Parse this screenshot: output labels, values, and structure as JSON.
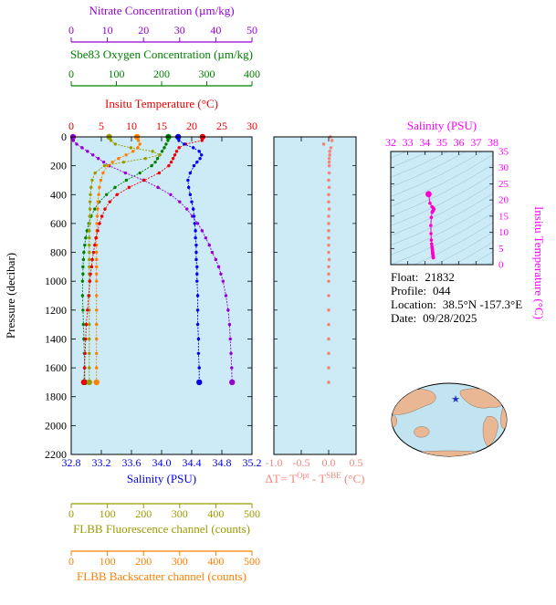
{
  "colors": {
    "panel_bg": "#cdeaf7",
    "frame": "#000000",
    "nitrate": "#9400D3",
    "oxygen": "#008000",
    "temperature": "#EE0000",
    "salinity": "#0000EE",
    "fluorescence": "#9B9B00",
    "backscatter": "#FF7F00",
    "delta": "#F4867D",
    "ts": "#FF00CC",
    "ts_axis": "#FF00FF",
    "contour": "#8FBFD4",
    "map_ocean": "#C2E4F0",
    "map_land": "#E9B793",
    "star": "#2233BB"
  },
  "info": {
    "rows": [
      {
        "label": "Float:",
        "value": "21832"
      },
      {
        "label": "Profile:",
        "value": "044"
      },
      {
        "label": "Location:",
        "value": "38.5°N  -157.3°E"
      },
      {
        "label": "Date:",
        "value": "09/28/2025"
      }
    ]
  },
  "chart_data": [
    {
      "id": "profiles",
      "type": "line",
      "ylabel": "Pressure (decibar)",
      "ylim": [
        0,
        2200
      ],
      "yticks": [
        0,
        200,
        400,
        600,
        800,
        1000,
        1200,
        1400,
        1600,
        1800,
        2000,
        2200
      ],
      "x_axes": [
        {
          "id": "nitrate",
          "label": "Nitrate Concentration (µm/kg)",
          "color": "#9400D3",
          "range": [
            0,
            50
          ],
          "ticks": [
            0,
            10,
            20,
            30,
            40,
            50
          ],
          "tick_labels": [
            "0",
            "10",
            "20",
            "30",
            "40",
            "50"
          ]
        },
        {
          "id": "oxygen",
          "label": "Sbe83 Oxygen Concentration (µm/kg)",
          "color": "#008000",
          "range": [
            0,
            400
          ],
          "ticks": [
            0,
            100,
            200,
            300,
            400
          ],
          "tick_labels": [
            "0",
            "100",
            "200",
            "300",
            "400"
          ]
        },
        {
          "id": "temperature",
          "label": "Insitu Temperature (°C)",
          "color": "#EE0000",
          "range": [
            0,
            30
          ],
          "ticks": [
            0,
            5,
            10,
            15,
            20,
            25,
            30
          ],
          "tick_labels": [
            "0",
            "5",
            "10",
            "15",
            "20",
            "25",
            "30"
          ]
        },
        {
          "id": "salinity",
          "label": "Salinity (PSU)",
          "color": "#0000EE",
          "range": [
            32.8,
            35.2
          ],
          "ticks": [
            32.8,
            33.2,
            33.6,
            34.0,
            34.4,
            34.8,
            35.2
          ],
          "tick_labels": [
            "32.8",
            "33.2",
            "33.6",
            "34.0",
            "34.4",
            "34.8",
            "35.2"
          ]
        },
        {
          "id": "fluorescence",
          "label": "FLBB Fluorescence channel (counts)",
          "color": "#9B9B00",
          "range": [
            0,
            500
          ],
          "ticks": [
            0,
            100,
            200,
            300,
            400,
            500
          ],
          "tick_labels": [
            "0",
            "100",
            "200",
            "300",
            "400",
            "500"
          ]
        },
        {
          "id": "backscatter",
          "label": "FLBB Backscatter channel (counts)",
          "color": "#FF7F00",
          "range": [
            0,
            500
          ],
          "ticks": [
            0,
            100,
            200,
            300,
            400,
            500
          ],
          "tick_labels": [
            "0",
            "100",
            "200",
            "300",
            "400",
            "500"
          ]
        }
      ],
      "pressure": [
        0,
        25,
        50,
        75,
        100,
        125,
        150,
        175,
        200,
        250,
        300,
        350,
        400,
        450,
        500,
        550,
        600,
        650,
        700,
        750,
        800,
        850,
        900,
        950,
        1000,
        1100,
        1200,
        1300,
        1400,
        1500,
        1600,
        1700
      ],
      "series": [
        {
          "name": "Nitrate",
          "axis": "nitrate",
          "color": "#9400D3",
          "values": [
            0.5,
            0.6,
            1.5,
            3.0,
            4.5,
            6.0,
            7.5,
            9.0,
            10.5,
            15.0,
            20.0,
            24.0,
            27.5,
            30.0,
            32.0,
            33.5,
            35.0,
            36.2,
            37.2,
            38.2,
            39.0,
            40.0,
            40.8,
            41.4,
            42.0,
            42.8,
            43.4,
            43.8,
            44.0,
            44.2,
            44.4,
            44.5
          ]
        },
        {
          "name": "Sbe83 Oxygen",
          "axis": "oxygen",
          "color": "#008000",
          "values": [
            215,
            214,
            210,
            206,
            201,
            196,
            191,
            186,
            178,
            152,
            122,
            97,
            78,
            62,
            52,
            44,
            39,
            35,
            32,
            30,
            28,
            27,
            26,
            26,
            25,
            25,
            26,
            27,
            28,
            29,
            30,
            30
          ]
        },
        {
          "name": "FLBB Backscatter",
          "axis": "backscatter",
          "color": "#FF7F00",
          "values": [
            182,
            186,
            190,
            184,
            171,
            152,
            131,
            114,
            101,
            88,
            82,
            78,
            76,
            74,
            73,
            72,
            71,
            71,
            70,
            70,
            70,
            70,
            70,
            70,
            70,
            70,
            70,
            70,
            70,
            70,
            70,
            70
          ]
        },
        {
          "name": "FLBB Fluorescence",
          "axis": "fluorescence",
          "color": "#9B9B00",
          "values": [
            105,
            110,
            122,
            165,
            225,
            245,
            205,
            145,
            92,
            66,
            58,
            55,
            53,
            52,
            52,
            51,
            51,
            50,
            50,
            50,
            50,
            50,
            50,
            50,
            50,
            50,
            50,
            50,
            50,
            50,
            50,
            50
          ]
        },
        {
          "name": "Insitu Temperature",
          "axis": "temperature",
          "color": "#EE0000",
          "values": [
            21.8,
            21.7,
            19.0,
            17.9,
            17.5,
            17.2,
            16.9,
            16.6,
            16.2,
            14.6,
            12.1,
            9.6,
            7.6,
            6.4,
            5.6,
            5.1,
            4.7,
            4.4,
            4.1,
            3.9,
            3.7,
            3.5,
            3.4,
            3.2,
            3.1,
            2.9,
            2.7,
            2.5,
            2.4,
            2.3,
            2.2,
            2.1
          ]
        },
        {
          "name": "Salinity",
          "axis": "salinity",
          "color": "#0000EE",
          "values": [
            34.22,
            34.23,
            34.3,
            34.42,
            34.5,
            34.53,
            34.51,
            34.47,
            34.43,
            34.38,
            34.35,
            34.36,
            34.38,
            34.4,
            34.42,
            34.43,
            34.44,
            34.45,
            34.45,
            34.46,
            34.46,
            34.46,
            34.47,
            34.47,
            34.47,
            34.48,
            34.48,
            34.48,
            34.49,
            34.49,
            34.5,
            34.5
          ]
        }
      ]
    },
    {
      "id": "delta-t",
      "type": "scatter",
      "title_parts": {
        "t1": "ΔT= T",
        "sup1": "Opt",
        "t2": " - T",
        "sup2": "SBE",
        "t3": " (°C)"
      },
      "color": "#F4867D",
      "xlim": [
        -1.0,
        0.5
      ],
      "xticks": [
        -1.0,
        -0.5,
        0.0,
        0.5
      ],
      "xtick_labels": [
        "-1.0",
        "-0.5",
        "0.0",
        "0.5"
      ],
      "ylim": [
        0,
        2200
      ],
      "yticks": [
        0,
        200,
        400,
        600,
        800,
        1000,
        1200,
        1400,
        1600,
        1800,
        2000,
        2200
      ],
      "pressure": [
        0,
        25,
        50,
        75,
        100,
        125,
        150,
        175,
        200,
        250,
        300,
        350,
        400,
        450,
        500,
        550,
        600,
        650,
        700,
        750,
        800,
        850,
        900,
        950,
        1000,
        1100,
        1200,
        1300,
        1400,
        1500,
        1600,
        1700
      ],
      "values": [
        0.03,
        0.06,
        -0.09,
        0.04,
        0.02,
        0.02,
        0.01,
        0.01,
        0.01,
        0.01,
        0.0,
        0.01,
        0.0,
        0.0,
        0.01,
        0.0,
        0.0,
        0.0,
        0.0,
        0.0,
        0.0,
        0.01,
        0.0,
        0.0,
        0.0,
        0.0,
        0.0,
        0.0,
        0.0,
        0.0,
        0.0,
        0.0
      ]
    },
    {
      "id": "ts-diagram",
      "type": "scatter",
      "title": "Salinity (PSU)",
      "ylabel": "Insitu Temperature (°C)",
      "color": "#FF00CC",
      "axis_color": "#FF00FF",
      "xlim": [
        32,
        38
      ],
      "xticks": [
        32,
        33,
        34,
        35,
        36,
        37,
        38
      ],
      "xtick_labels": [
        "32",
        "33",
        "34",
        "35",
        "36",
        "37",
        "38"
      ],
      "ylim": [
        0,
        35
      ],
      "yticks": [
        0,
        5,
        10,
        15,
        20,
        25,
        30,
        35
      ],
      "ytick_labels": [
        "0",
        "5",
        "10",
        "15",
        "20",
        "25",
        "30",
        "35"
      ],
      "points_from": [
        "Salinity",
        "Insitu Temperature"
      ]
    }
  ]
}
